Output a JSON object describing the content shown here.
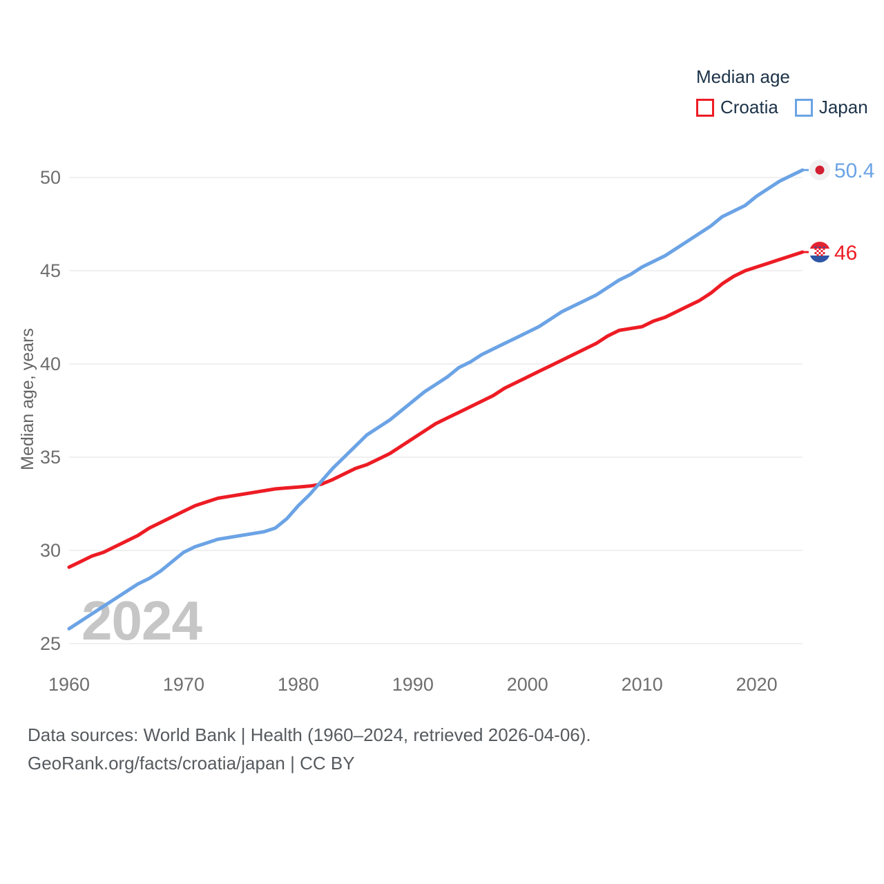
{
  "legend": {
    "title": "Median age"
  },
  "watermark": "2024",
  "footer": {
    "line1": "Data sources: World Bank | Health (1960–2024, retrieved 2026-04-06).",
    "line2": "GeoRank.org/facts/croatia/japan | CC BY"
  },
  "colors": {
    "croatia_line": "#ed1c24",
    "japan_line": "#6ba3e5",
    "grid": "#ececec",
    "tick_text": "#6e6e6e",
    "axis_label_text": "#646464",
    "legend_text": "#1c3247",
    "watermark_text": "#c6c6c6",
    "footer_text": "#565a5e",
    "japan_flag_bg": "#f1f1f1",
    "japan_flag_dot": "#d21f32",
    "croatia_flag_red": "#e32430",
    "croatia_flag_white": "#ffffff",
    "croatia_flag_blue": "#2e56a5"
  },
  "chart_data": {
    "type": "line",
    "title": "Median age",
    "xlabel": "",
    "ylabel": "Median age, years",
    "xlim": [
      1960,
      2024
    ],
    "ylim": [
      25,
      51
    ],
    "grid": "horizontal",
    "legend_position": "top-right",
    "xticks": [
      1960,
      1970,
      1980,
      1990,
      2000,
      2010,
      2020
    ],
    "yticks": [
      25,
      30,
      35,
      40,
      45,
      50
    ],
    "x": [
      1960,
      1961,
      1962,
      1963,
      1964,
      1965,
      1966,
      1967,
      1968,
      1969,
      1970,
      1971,
      1972,
      1973,
      1974,
      1975,
      1976,
      1977,
      1978,
      1979,
      1980,
      1981,
      1982,
      1983,
      1984,
      1985,
      1986,
      1987,
      1988,
      1989,
      1990,
      1991,
      1992,
      1993,
      1994,
      1995,
      1996,
      1997,
      1998,
      1999,
      2000,
      2001,
      2002,
      2003,
      2004,
      2005,
      2006,
      2007,
      2008,
      2009,
      2010,
      2011,
      2012,
      2013,
      2014,
      2015,
      2016,
      2017,
      2018,
      2019,
      2020,
      2021,
      2022,
      2023,
      2024
    ],
    "series": [
      {
        "name": "Croatia",
        "end_label": "46",
        "values": [
          29.1,
          29.4,
          29.7,
          29.9,
          30.2,
          30.5,
          30.8,
          31.2,
          31.5,
          31.8,
          32.1,
          32.4,
          32.6,
          32.8,
          32.9,
          33.0,
          33.1,
          33.2,
          33.3,
          33.35,
          33.4,
          33.45,
          33.55,
          33.8,
          34.1,
          34.4,
          34.6,
          34.9,
          35.2,
          35.6,
          36.0,
          36.4,
          36.8,
          37.1,
          37.4,
          37.7,
          38.0,
          38.3,
          38.7,
          39.0,
          39.3,
          39.6,
          39.9,
          40.2,
          40.5,
          40.8,
          41.1,
          41.5,
          41.8,
          41.9,
          42.0,
          42.3,
          42.5,
          42.8,
          43.1,
          43.4,
          43.8,
          44.3,
          44.7,
          45.0,
          45.2,
          45.4,
          45.6,
          45.8,
          46.0
        ]
      },
      {
        "name": "Japan",
        "end_label": "50.4",
        "values": [
          25.8,
          26.2,
          26.6,
          27.0,
          27.4,
          27.8,
          28.2,
          28.5,
          28.9,
          29.4,
          29.9,
          30.2,
          30.4,
          30.6,
          30.7,
          30.8,
          30.9,
          31.0,
          31.2,
          31.7,
          32.4,
          33.0,
          33.7,
          34.4,
          35.0,
          35.6,
          36.2,
          36.6,
          37.0,
          37.5,
          38.0,
          38.5,
          38.9,
          39.3,
          39.8,
          40.1,
          40.5,
          40.8,
          41.1,
          41.4,
          41.7,
          42.0,
          42.4,
          42.8,
          43.1,
          43.4,
          43.7,
          44.1,
          44.5,
          44.8,
          45.2,
          45.5,
          45.8,
          46.2,
          46.6,
          47.0,
          47.4,
          47.9,
          48.2,
          48.5,
          49.0,
          49.4,
          49.8,
          50.1,
          50.4
        ]
      }
    ]
  }
}
